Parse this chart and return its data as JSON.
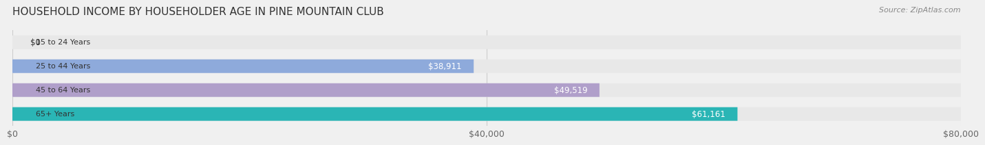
{
  "title": "HOUSEHOLD INCOME BY HOUSEHOLDER AGE IN PINE MOUNTAIN CLUB",
  "source": "Source: ZipAtlas.com",
  "categories": [
    "15 to 24 Years",
    "25 to 44 Years",
    "45 to 64 Years",
    "65+ Years"
  ],
  "values": [
    0,
    38911,
    49519,
    61161
  ],
  "bar_colors": [
    "#e8888a",
    "#8eaadb",
    "#b09fca",
    "#2ab5b5"
  ],
  "label_colors": [
    "#555555",
    "#ffffff",
    "#ffffff",
    "#ffffff"
  ],
  "bar_height": 0.55,
  "xlim": [
    0,
    80000
  ],
  "xticks": [
    0,
    40000,
    80000
  ],
  "xtick_labels": [
    "$0",
    "$40,000",
    "$80,000"
  ],
  "background_color": "#f0f0f0",
  "bar_bg_color": "#e8e8e8",
  "title_fontsize": 11,
  "source_fontsize": 8,
  "tick_fontsize": 9,
  "label_fontsize": 8.5,
  "category_fontsize": 8
}
